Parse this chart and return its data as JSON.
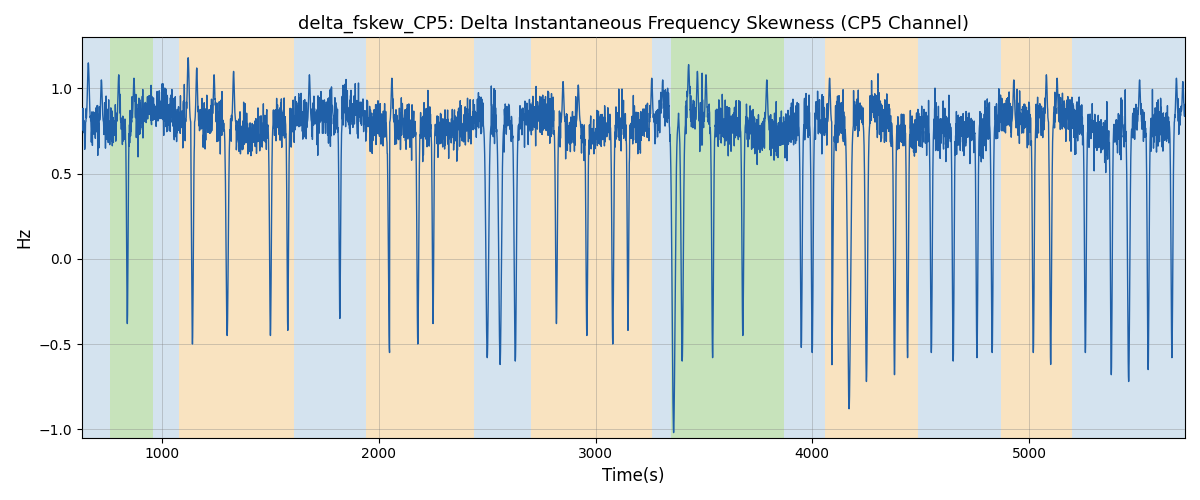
{
  "title": "delta_fskew_CP5: Delta Instantaneous Frequency Skewness (CP5 Channel)",
  "xlabel": "Time(s)",
  "ylabel": "Hz",
  "xlim": [
    630,
    5720
  ],
  "ylim": [
    -1.05,
    1.3
  ],
  "yticks": [
    -1.0,
    -0.5,
    0.0,
    0.5,
    1.0
  ],
  "xticks": [
    1000,
    2000,
    3000,
    4000,
    5000
  ],
  "line_color": "#2060a8",
  "line_width": 1.0,
  "bg_regions": [
    {
      "xmin": 630,
      "xmax": 760,
      "color": "#aac8e0",
      "alpha": 0.5
    },
    {
      "xmin": 760,
      "xmax": 960,
      "color": "#90c878",
      "alpha": 0.5
    },
    {
      "xmin": 960,
      "xmax": 1080,
      "color": "#aac8e0",
      "alpha": 0.5
    },
    {
      "xmin": 1080,
      "xmax": 1610,
      "color": "#f5c882",
      "alpha": 0.5
    },
    {
      "xmin": 1610,
      "xmax": 1940,
      "color": "#aac8e0",
      "alpha": 0.5
    },
    {
      "xmin": 1940,
      "xmax": 2440,
      "color": "#f5c882",
      "alpha": 0.5
    },
    {
      "xmin": 2440,
      "xmax": 2700,
      "color": "#aac8e0",
      "alpha": 0.5
    },
    {
      "xmin": 2700,
      "xmax": 3260,
      "color": "#f5c882",
      "alpha": 0.5
    },
    {
      "xmin": 3260,
      "xmax": 3350,
      "color": "#aac8e0",
      "alpha": 0.5
    },
    {
      "xmin": 3350,
      "xmax": 3870,
      "color": "#90c878",
      "alpha": 0.5
    },
    {
      "xmin": 3870,
      "xmax": 4060,
      "color": "#aac8e0",
      "alpha": 0.5
    },
    {
      "xmin": 4060,
      "xmax": 4490,
      "color": "#f5c882",
      "alpha": 0.5
    },
    {
      "xmin": 4490,
      "xmax": 4870,
      "color": "#aac8e0",
      "alpha": 0.5
    },
    {
      "xmin": 4870,
      "xmax": 5200,
      "color": "#f5c882",
      "alpha": 0.5
    },
    {
      "xmin": 5200,
      "xmax": 5720,
      "color": "#aac8e0",
      "alpha": 0.5
    }
  ],
  "seed": 42,
  "n_points": 5150
}
